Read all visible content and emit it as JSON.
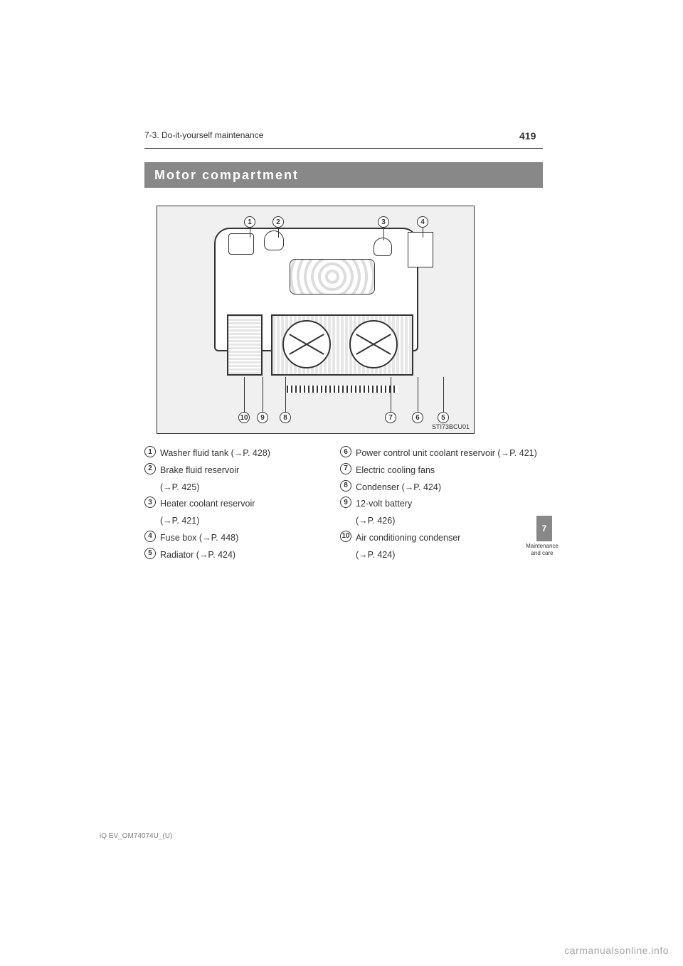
{
  "header": {
    "page_number": "419",
    "crumb": "7-3. Do-it-yourself maintenance"
  },
  "section": {
    "title": "Motor compartment"
  },
  "diagram": {
    "label": "STI73BCU01"
  },
  "legend": [
    {
      "n": 1,
      "text": "Washer fluid tank",
      "pageref": "(→P. 428)"
    },
    {
      "n": 2,
      "text": "Brake fluid reservoir",
      "pageref": "(→P. 425)"
    },
    {
      "n": 3,
      "text": "Heater coolant reservoir",
      "pageref": "(→P. 421)"
    },
    {
      "n": 4,
      "text": "Fuse box",
      "pageref": "(→P. 448)"
    },
    {
      "n": 5,
      "text": "Radiator",
      "pageref": "(→P. 424)"
    },
    {
      "n": 6,
      "text": "Power control unit coolant reservoir",
      "pageref": "(→P. 421)"
    },
    {
      "n": 7,
      "text": "Electric cooling fans",
      "pageref": ""
    },
    {
      "n": 8,
      "text": "Condenser",
      "pageref": "(→P. 424)"
    },
    {
      "n": 9,
      "text": "12-volt battery",
      "pageref": "(→P. 426)"
    },
    {
      "n": 10,
      "text": "Air conditioning condenser",
      "pageref": "(→P. 424)"
    }
  ],
  "side_tab": {
    "chapter": "7",
    "caption": "Maintenance and care"
  },
  "watermark": "carmanualsonline.info",
  "note": "iQ EV_OM74074U_(U)"
}
